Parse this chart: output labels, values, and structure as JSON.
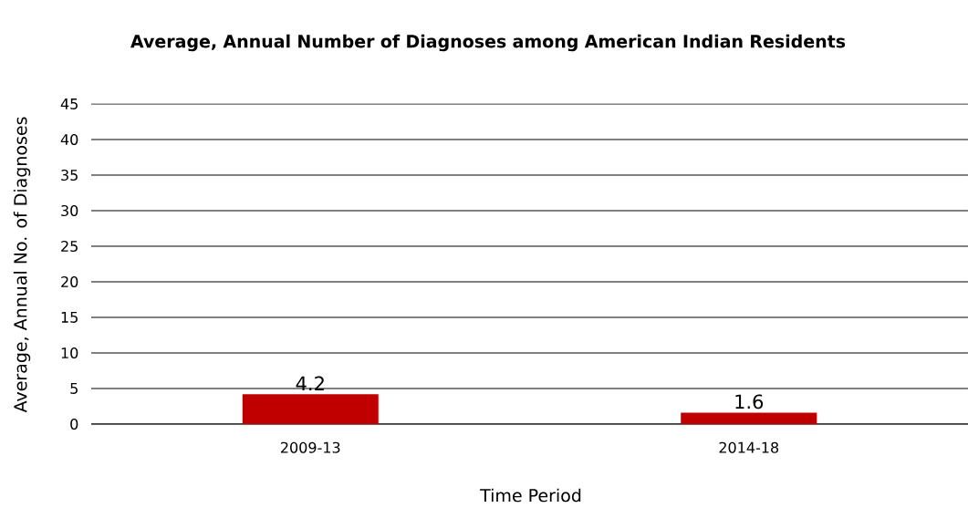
{
  "chart_data": {
    "type": "bar",
    "title": "Average, Annual Number of Diagnoses among American Indian Residents",
    "xlabel": "Time Period",
    "ylabel": "Average, Annual No. of Diagnoses",
    "categories": [
      "2009-13",
      "2014-18"
    ],
    "values": [
      4.2,
      1.6
    ],
    "color": "#c00000",
    "data_labels": true,
    "ylim": [
      0,
      45
    ],
    "yticks": [
      0,
      5,
      10,
      15,
      20,
      25,
      30,
      35,
      40,
      45
    ],
    "grid": "y"
  }
}
